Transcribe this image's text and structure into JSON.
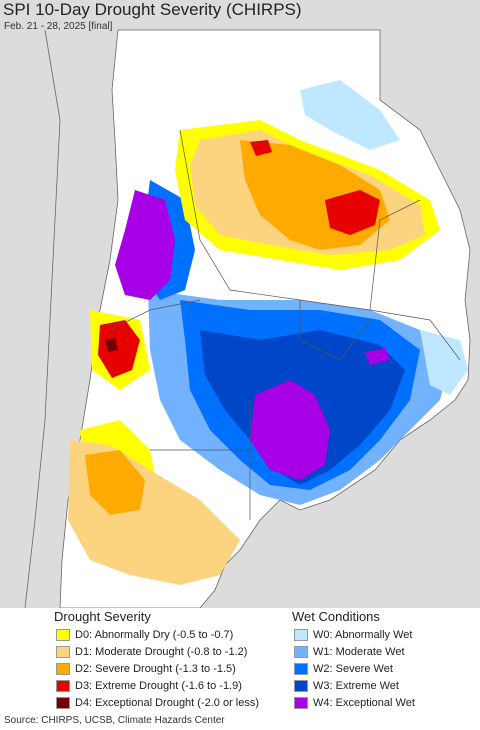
{
  "header": {
    "title": "SPI 10-Day Drought Severity (CHIRPS)",
    "subtitle": "Feb. 21 - 28, 2025 [final]"
  },
  "colors": {
    "ocean": "#dcdcdc",
    "land_no_data": "#ffffff",
    "border": "#555555"
  },
  "legend": {
    "drought": {
      "heading": "Drought Severity",
      "items": [
        {
          "label": "D0: Abnormally Dry (-0.5 to -0.7)",
          "color": "#ffff00"
        },
        {
          "label": "D1: Moderate Drought (-0.8 to -1.2)",
          "color": "#fcd37f"
        },
        {
          "label": "D2: Severe Drought (-1.3 to -1.5)",
          "color": "#ffaa00"
        },
        {
          "label": "D3: Extreme Drought (-1.6 to -1.9)",
          "color": "#e60000"
        },
        {
          "label": "D4: Exceptional Drought (-2.0 or less)",
          "color": "#730000"
        }
      ]
    },
    "wet": {
      "heading": "Wet Conditions",
      "items": [
        {
          "label": "W0: Abnormally Wet",
          "color": "#bee8ff"
        },
        {
          "label": "W1: Moderate Wet",
          "color": "#73b2ff"
        },
        {
          "label": "W2: Severe Wet",
          "color": "#0070ff"
        },
        {
          "label": "W3: Extreme Wet",
          "color": "#0046c8"
        },
        {
          "label": "W4: Exceptional Wet",
          "color": "#a800e6"
        }
      ]
    }
  },
  "footer": {
    "source": "Source: CHIRPS, UCSB, Climate Hazards Center"
  }
}
